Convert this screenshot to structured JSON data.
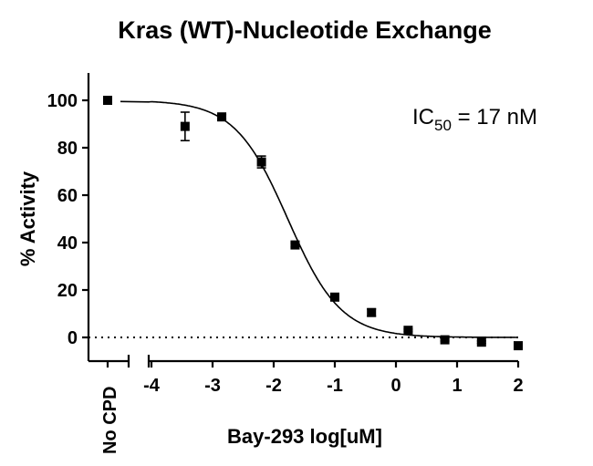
{
  "chart_data": {
    "type": "scatter",
    "title": "Kras (WT)-Nucleotide Exchange",
    "xlabel": "Bay-293 log[uM]",
    "ylabel": "% Activity",
    "x_category_label": "No CPD",
    "xlim": [
      -4,
      2
    ],
    "ylim": [
      -10,
      110
    ],
    "x_ticks": [
      "-4",
      "-3",
      "-2",
      "-1",
      "0",
      "1",
      "2"
    ],
    "y_ticks": [
      "0",
      "20",
      "40",
      "60",
      "80",
      "100"
    ],
    "control_point": {
      "label": "No CPD",
      "y": 100
    },
    "points": [
      {
        "x": -3.45,
        "y": 89,
        "err": 6
      },
      {
        "x": -2.85,
        "y": 93,
        "err": 1
      },
      {
        "x": -2.2,
        "y": 74,
        "err": 2.5
      },
      {
        "x": -1.65,
        "y": 39,
        "err": 0.8
      },
      {
        "x": -1.0,
        "y": 17,
        "err": 0.8
      },
      {
        "x": -0.4,
        "y": 10.5,
        "err": 1.5
      },
      {
        "x": 0.2,
        "y": 3,
        "err": 0.5
      },
      {
        "x": 0.8,
        "y": -1,
        "err": 0.5
      },
      {
        "x": 1.4,
        "y": -2,
        "err": 0.5
      },
      {
        "x": 2.0,
        "y": -3.5,
        "err": 0.5
      }
    ],
    "fit": {
      "model": "four-parameter logistic",
      "top": 100,
      "bottom": 0,
      "logIC50": -1.77,
      "hill": 1.0
    },
    "baseline": {
      "y": 0,
      "style": "dotted"
    },
    "annotation": {
      "prefix": "IC",
      "subscript": "50",
      "suffix": " = 17 nM"
    },
    "grid": false,
    "legend": "none"
  }
}
